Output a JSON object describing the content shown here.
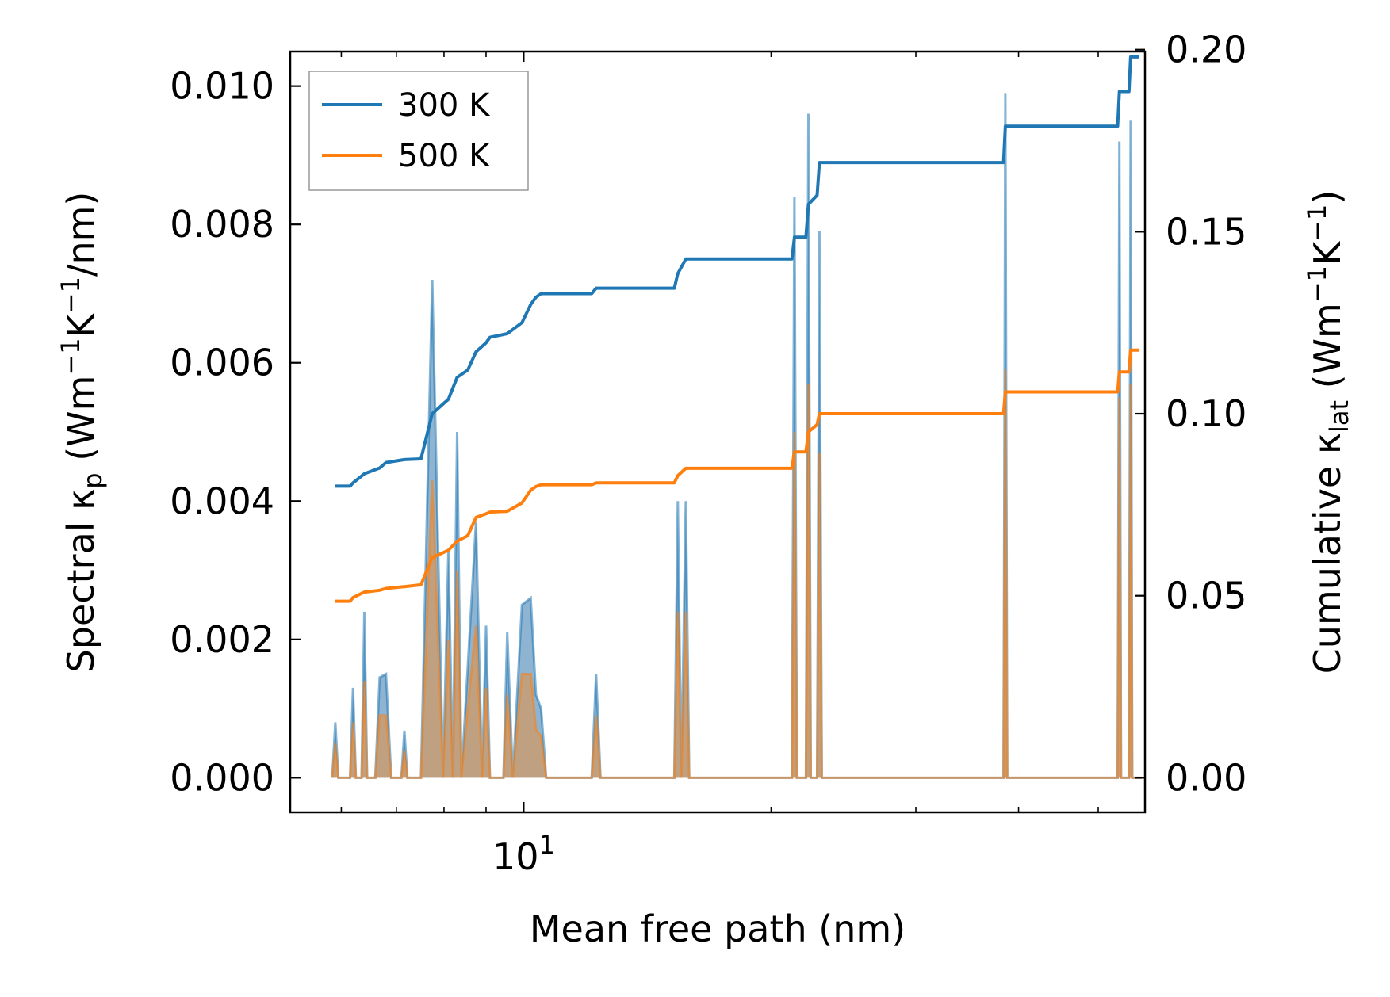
{
  "chart_data": {
    "type": "line",
    "xlabel": "Mean free path (nm)",
    "ylabel_left": "Spectral κ",
    "ylabel_left_sub": "p",
    "ylabel_left_units": {
      "open": " (Wm",
      "exp1": "−1",
      "mid": "K",
      "exp2": "−1",
      "close": "/nm)"
    },
    "ylabel_right": "Cumulative κ",
    "ylabel_right_sub": "lat",
    "ylabel_right_units": {
      "open": " (Wm",
      "exp1": "−1",
      "mid": "K",
      "exp2": "−1",
      "close": ")"
    },
    "xscale": "log",
    "xlim": [
      5.2,
      57
    ],
    "x_tick_major": {
      "base": "10",
      "exp": "1",
      "value": 10
    },
    "x_minor_ticks": [
      6,
      7,
      8,
      9,
      20,
      30,
      40,
      50
    ],
    "ylim_left": [
      -0.0005,
      0.0105
    ],
    "yticks_left": [
      "0.000",
      "0.002",
      "0.004",
      "0.006",
      "0.008",
      "0.010"
    ],
    "ylim_right": [
      -0.0095,
      0.1995
    ],
    "yticks_right": [
      "0.00",
      "0.05",
      "0.10",
      "0.15",
      "0.20"
    ],
    "legend": {
      "placement": "top-left",
      "entries": [
        "300 K",
        "500 K"
      ]
    },
    "colors": {
      "300 K": "#1f77b4",
      "500 K": "#ff7f0e",
      "fill300": "#7aa7c9",
      "fill500": "#c89e74"
    },
    "spectral": {
      "300 K": [
        [
          5.85,
          0
        ],
        [
          5.9,
          0.0008
        ],
        [
          5.95,
          0
        ],
        [
          6.15,
          0
        ],
        [
          6.2,
          0.0013
        ],
        [
          6.25,
          0
        ],
        [
          6.35,
          0
        ],
        [
          6.4,
          0.0024
        ],
        [
          6.45,
          0
        ],
        [
          6.6,
          0
        ],
        [
          6.68,
          0.00145
        ],
        [
          6.8,
          0.0015
        ],
        [
          6.9,
          0
        ],
        [
          7.1,
          0
        ],
        [
          7.16,
          0.00068
        ],
        [
          7.22,
          0
        ],
        [
          7.5,
          0
        ],
        [
          7.74,
          0.0072
        ],
        [
          7.98,
          0
        ],
        [
          8.1,
          0.0033
        ],
        [
          8.2,
          0
        ],
        [
          8.3,
          0.005
        ],
        [
          8.4,
          0
        ],
        [
          8.55,
          0.0016
        ],
        [
          8.75,
          0.0037
        ],
        [
          8.9,
          0
        ],
        [
          9.0,
          0.0022
        ],
        [
          9.1,
          0
        ],
        [
          9.45,
          0
        ],
        [
          9.55,
          0.0021
        ],
        [
          9.7,
          0
        ],
        [
          9.95,
          0.0025
        ],
        [
          10.2,
          0.0026
        ],
        [
          10.35,
          0.0012
        ],
        [
          10.5,
          0.001
        ],
        [
          10.65,
          0
        ],
        [
          12.1,
          0
        ],
        [
          12.25,
          0.0015
        ],
        [
          12.4,
          0
        ],
        [
          15.25,
          0
        ],
        [
          15.4,
          0.004
        ],
        [
          15.55,
          0
        ],
        [
          15.75,
          0.004
        ],
        [
          15.9,
          0
        ],
        [
          21.2,
          0
        ],
        [
          21.35,
          0.0084
        ],
        [
          21.5,
          0
        ],
        [
          22.05,
          0
        ],
        [
          22.2,
          0.0096
        ],
        [
          22.35,
          0
        ],
        [
          22.75,
          0
        ],
        [
          22.9,
          0.0079
        ],
        [
          23.05,
          0
        ],
        [
          38.35,
          0
        ],
        [
          38.55,
          0.0099
        ],
        [
          38.75,
          0
        ],
        [
          52.8,
          0
        ],
        [
          53.05,
          0.0092
        ],
        [
          53.3,
          0
        ],
        [
          54.5,
          0
        ],
        [
          54.75,
          0.0095
        ],
        [
          55.0,
          0
        ],
        [
          56.5,
          0
        ]
      ],
      "500 K": [
        [
          5.85,
          0
        ],
        [
          5.9,
          0.0005
        ],
        [
          5.95,
          0
        ],
        [
          6.15,
          0
        ],
        [
          6.2,
          0.0008
        ],
        [
          6.25,
          0
        ],
        [
          6.35,
          0
        ],
        [
          6.4,
          0.0014
        ],
        [
          6.45,
          0
        ],
        [
          6.6,
          0
        ],
        [
          6.68,
          0.0009
        ],
        [
          6.8,
          0.0009
        ],
        [
          6.9,
          0
        ],
        [
          7.1,
          0
        ],
        [
          7.16,
          0.0004
        ],
        [
          7.22,
          0
        ],
        [
          7.5,
          0
        ],
        [
          7.74,
          0.0043
        ],
        [
          7.98,
          0
        ],
        [
          8.1,
          0.002
        ],
        [
          8.2,
          0
        ],
        [
          8.3,
          0.003
        ],
        [
          8.4,
          0
        ],
        [
          8.55,
          0.001
        ],
        [
          8.75,
          0.0022
        ],
        [
          8.9,
          0
        ],
        [
          9.0,
          0.0013
        ],
        [
          9.1,
          0
        ],
        [
          9.45,
          0
        ],
        [
          9.55,
          0.0012
        ],
        [
          9.7,
          0
        ],
        [
          9.95,
          0.0015
        ],
        [
          10.2,
          0.0015
        ],
        [
          10.35,
          0.0007
        ],
        [
          10.5,
          0.0006
        ],
        [
          10.65,
          0
        ],
        [
          12.1,
          0
        ],
        [
          12.25,
          0.0009
        ],
        [
          12.4,
          0
        ],
        [
          15.25,
          0
        ],
        [
          15.4,
          0.0024
        ],
        [
          15.55,
          0
        ],
        [
          15.75,
          0.0024
        ],
        [
          15.9,
          0
        ],
        [
          21.2,
          0
        ],
        [
          21.35,
          0.005
        ],
        [
          21.5,
          0
        ],
        [
          22.05,
          0
        ],
        [
          22.2,
          0.0057
        ],
        [
          22.35,
          0
        ],
        [
          22.75,
          0
        ],
        [
          22.9,
          0.0047
        ],
        [
          23.05,
          0
        ],
        [
          38.35,
          0
        ],
        [
          38.55,
          0.0059
        ],
        [
          38.75,
          0
        ],
        [
          52.8,
          0
        ],
        [
          53.05,
          0.0055
        ],
        [
          53.3,
          0
        ],
        [
          54.5,
          0
        ],
        [
          54.75,
          0.0057
        ],
        [
          55.0,
          0
        ],
        [
          56.5,
          0
        ]
      ]
    },
    "cumulative": {
      "300 K": [
        [
          5.9,
          0.0801
        ],
        [
          6.15,
          0.0801
        ],
        [
          6.2,
          0.081
        ],
        [
          6.4,
          0.0835
        ],
        [
          6.68,
          0.0851
        ],
        [
          6.8,
          0.0866
        ],
        [
          7.16,
          0.0874
        ],
        [
          7.5,
          0.0876
        ],
        [
          7.74,
          0.1
        ],
        [
          8.1,
          0.104
        ],
        [
          8.3,
          0.11
        ],
        [
          8.55,
          0.112
        ],
        [
          8.75,
          0.117
        ],
        [
          9.0,
          0.1195
        ],
        [
          9.1,
          0.121
        ],
        [
          9.55,
          0.122
        ],
        [
          9.95,
          0.125
        ],
        [
          10.2,
          0.13
        ],
        [
          10.35,
          0.132
        ],
        [
          10.5,
          0.133
        ],
        [
          12.1,
          0.133
        ],
        [
          12.25,
          0.1345
        ],
        [
          15.25,
          0.1345
        ],
        [
          15.4,
          0.1385
        ],
        [
          15.75,
          0.1425
        ],
        [
          21.2,
          0.1425
        ],
        [
          21.35,
          0.1485
        ],
        [
          22.05,
          0.1485
        ],
        [
          22.2,
          0.1575
        ],
        [
          22.75,
          0.16
        ],
        [
          22.9,
          0.169
        ],
        [
          38.35,
          0.169
        ],
        [
          38.55,
          0.179
        ],
        [
          52.8,
          0.179
        ],
        [
          53.05,
          0.1885
        ],
        [
          54.5,
          0.1885
        ],
        [
          54.75,
          0.198
        ],
        [
          56.0,
          0.198
        ]
      ],
      "500 K": [
        [
          5.9,
          0.0485
        ],
        [
          6.15,
          0.0485
        ],
        [
          6.2,
          0.0495
        ],
        [
          6.4,
          0.051
        ],
        [
          6.68,
          0.0515
        ],
        [
          6.8,
          0.052
        ],
        [
          7.16,
          0.0525
        ],
        [
          7.5,
          0.053
        ],
        [
          7.74,
          0.0605
        ],
        [
          8.1,
          0.0625
        ],
        [
          8.3,
          0.065
        ],
        [
          8.55,
          0.0665
        ],
        [
          8.75,
          0.0715
        ],
        [
          9.0,
          0.0725
        ],
        [
          9.1,
          0.073
        ],
        [
          9.55,
          0.0732
        ],
        [
          9.95,
          0.0755
        ],
        [
          10.2,
          0.079
        ],
        [
          10.35,
          0.08
        ],
        [
          10.5,
          0.0805
        ],
        [
          12.1,
          0.0805
        ],
        [
          12.25,
          0.081
        ],
        [
          15.25,
          0.081
        ],
        [
          15.4,
          0.083
        ],
        [
          15.75,
          0.085
        ],
        [
          21.2,
          0.085
        ],
        [
          21.35,
          0.0895
        ],
        [
          22.05,
          0.0895
        ],
        [
          22.2,
          0.095
        ],
        [
          22.75,
          0.097
        ],
        [
          22.9,
          0.1
        ],
        [
          38.35,
          0.1
        ],
        [
          38.55,
          0.106
        ],
        [
          52.8,
          0.106
        ],
        [
          53.05,
          0.1115
        ],
        [
          54.5,
          0.1115
        ],
        [
          54.75,
          0.1175
        ],
        [
          56.0,
          0.1175
        ]
      ]
    }
  }
}
